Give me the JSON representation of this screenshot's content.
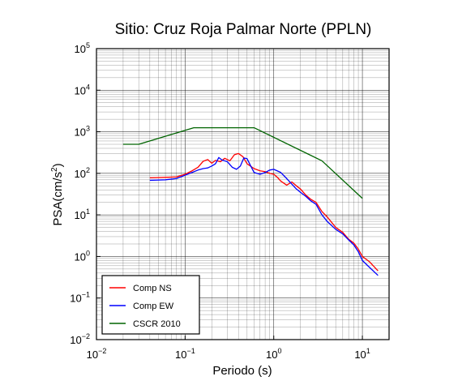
{
  "chart_data": {
    "type": "line",
    "title": "Sitio: Cruz Roja Palmar Norte (PPLN)",
    "xlabel": "Periodo (s)",
    "ylabel_base": "PSA(cm/s",
    "ylabel_sup": "2",
    "ylabel_end": ")",
    "x_scale": "log",
    "y_scale": "log",
    "xlim": [
      0.01,
      20
    ],
    "ylim": [
      0.01,
      100000
    ],
    "x_ticks": [
      {
        "base": "10",
        "exp": "−2",
        "value": 0.01
      },
      {
        "base": "10",
        "exp": "−1",
        "value": 0.1
      },
      {
        "base": "10",
        "exp": "0",
        "value": 1
      },
      {
        "base": "10",
        "exp": "1",
        "value": 10
      }
    ],
    "y_ticks": [
      {
        "base": "10",
        "exp": "−2",
        "value": 0.01
      },
      {
        "base": "10",
        "exp": "−1",
        "value": 0.1
      },
      {
        "base": "10",
        "exp": "0",
        "value": 1
      },
      {
        "base": "10",
        "exp": "1",
        "value": 10
      },
      {
        "base": "10",
        "exp": "2",
        "value": 100
      },
      {
        "base": "10",
        "exp": "3",
        "value": 1000
      },
      {
        "base": "10",
        "exp": "4",
        "value": 10000
      },
      {
        "base": "10",
        "exp": "5",
        "value": 100000
      }
    ],
    "grid": true,
    "legend_position": "bottom-left",
    "series": [
      {
        "name": "Comp NS",
        "color": "#ff0000",
        "points": [
          [
            0.04,
            78
          ],
          [
            0.06,
            80
          ],
          [
            0.08,
            82
          ],
          [
            0.1,
            95
          ],
          [
            0.12,
            115
          ],
          [
            0.14,
            140
          ],
          [
            0.16,
            195
          ],
          [
            0.18,
            215
          ],
          [
            0.2,
            175
          ],
          [
            0.22,
            205
          ],
          [
            0.25,
            190
          ],
          [
            0.28,
            230
          ],
          [
            0.32,
            200
          ],
          [
            0.36,
            280
          ],
          [
            0.4,
            300
          ],
          [
            0.45,
            250
          ],
          [
            0.5,
            170
          ],
          [
            0.6,
            130
          ],
          [
            0.7,
            115
          ],
          [
            0.8,
            110
          ],
          [
            0.9,
            100
          ],
          [
            1.0,
            95
          ],
          [
            1.1,
            80
          ],
          [
            1.2,
            65
          ],
          [
            1.4,
            52
          ],
          [
            1.6,
            62
          ],
          [
            1.8,
            50
          ],
          [
            2.0,
            42
          ],
          [
            2.3,
            30
          ],
          [
            2.6,
            24
          ],
          [
            3.0,
            20
          ],
          [
            3.5,
            12
          ],
          [
            4.0,
            9
          ],
          [
            5.0,
            5
          ],
          [
            6.0,
            3.8
          ],
          [
            7.0,
            2.6
          ],
          [
            8.0,
            2.1
          ],
          [
            9.0,
            1.5
          ],
          [
            10.0,
            1.0
          ],
          [
            12.0,
            0.75
          ],
          [
            15.0,
            0.45
          ]
        ]
      },
      {
        "name": "Comp EW",
        "color": "#0000ff",
        "points": [
          [
            0.04,
            68
          ],
          [
            0.06,
            70
          ],
          [
            0.08,
            75
          ],
          [
            0.1,
            90
          ],
          [
            0.12,
            105
          ],
          [
            0.14,
            120
          ],
          [
            0.16,
            130
          ],
          [
            0.18,
            135
          ],
          [
            0.2,
            150
          ],
          [
            0.22,
            170
          ],
          [
            0.24,
            240
          ],
          [
            0.26,
            210
          ],
          [
            0.3,
            190
          ],
          [
            0.34,
            140
          ],
          [
            0.38,
            125
          ],
          [
            0.42,
            150
          ],
          [
            0.46,
            235
          ],
          [
            0.5,
            225
          ],
          [
            0.55,
            150
          ],
          [
            0.6,
            105
          ],
          [
            0.7,
            95
          ],
          [
            0.8,
            105
          ],
          [
            0.9,
            120
          ],
          [
            1.0,
            125
          ],
          [
            1.2,
            105
          ],
          [
            1.4,
            75
          ],
          [
            1.6,
            55
          ],
          [
            1.8,
            42
          ],
          [
            2.0,
            35
          ],
          [
            2.3,
            28
          ],
          [
            2.6,
            22
          ],
          [
            3.0,
            18
          ],
          [
            3.5,
            10
          ],
          [
            4.0,
            7
          ],
          [
            5.0,
            4.5
          ],
          [
            6.0,
            3.5
          ],
          [
            7.0,
            2.5
          ],
          [
            8.0,
            1.9
          ],
          [
            9.0,
            1.3
          ],
          [
            10.0,
            0.8
          ],
          [
            12.0,
            0.55
          ],
          [
            15.0,
            0.35
          ]
        ]
      },
      {
        "name": "CSCR 2010",
        "color": "#006400",
        "points": [
          [
            0.02,
            500
          ],
          [
            0.03,
            500
          ],
          [
            0.125,
            1250
          ],
          [
            0.6,
            1250
          ],
          [
            3.5,
            200
          ],
          [
            10.0,
            25
          ]
        ]
      }
    ]
  }
}
